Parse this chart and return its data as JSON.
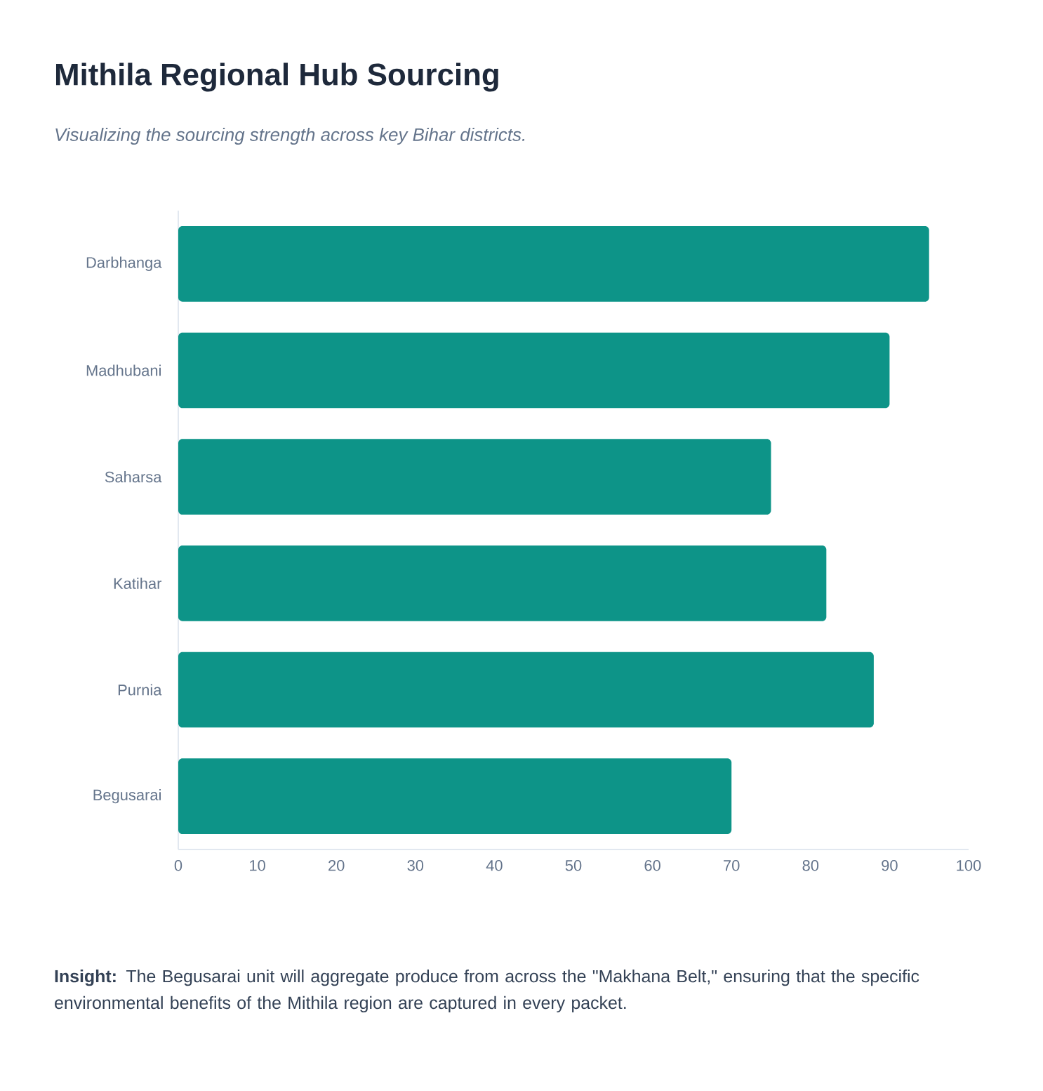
{
  "chart_data": {
    "type": "bar",
    "orientation": "horizontal",
    "title": "Mithila Regional Hub Sourcing",
    "subtitle": "Visualizing the sourcing strength across key Bihar districts.",
    "categories": [
      "Darbhanga",
      "Madhubani",
      "Saharsa",
      "Katihar",
      "Purnia",
      "Begusarai"
    ],
    "values": [
      95,
      90,
      75,
      82,
      88,
      70
    ],
    "color": "#0d9488",
    "xlim": [
      0,
      100
    ],
    "xticks": [
      0,
      10,
      20,
      30,
      40,
      50,
      60,
      70,
      80,
      90,
      100
    ],
    "annotations": [
      "**Insight:** The Begusarai unit will aggregate produce from across the \"Makhana Belt,\" ensuring that the specific environmental benefits of the Mithila region are captured in every packet."
    ]
  }
}
